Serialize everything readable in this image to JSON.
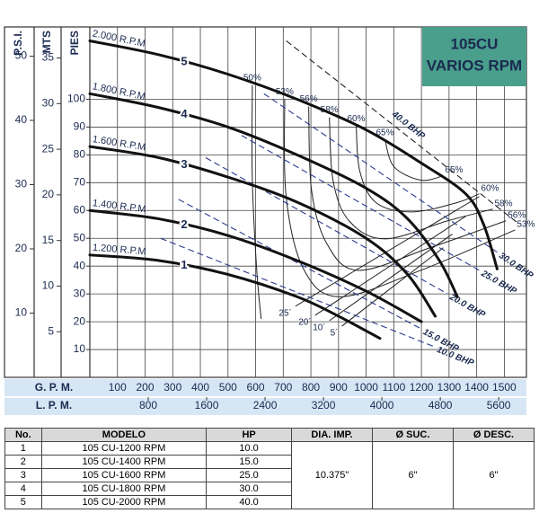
{
  "chart_data": {
    "type": "pump_curve",
    "title_lines": [
      "105CU",
      "VARIOS RPM"
    ],
    "title_color": "#4a9e8c",
    "x_label": "G. P. M.",
    "x2_label": "L. P. M.",
    "y_label": "PIES",
    "psi_label": "P.S.I.",
    "mts_label": "MTS",
    "xlim": [
      0,
      1580
    ],
    "xticks": [
      100,
      200,
      300,
      400,
      500,
      600,
      700,
      800,
      900,
      1000,
      1100,
      1200,
      1300,
      1400,
      1500
    ],
    "lpm_xlim": [
      0,
      5980
    ],
    "lpm_xticks": [
      800,
      1600,
      2400,
      3200,
      4000,
      4800,
      5600
    ],
    "ylim": [
      0,
      126
    ],
    "yticks": [
      10,
      20,
      30,
      40,
      50,
      60,
      70,
      80,
      90,
      100
    ],
    "psi_ylim": [
      0,
      54.55
    ],
    "psi_yticks": [
      10,
      20,
      30,
      40,
      50
    ],
    "mts_ylim": [
      0,
      38.4
    ],
    "mts_yticks": [
      5,
      10,
      15,
      20,
      25,
      30,
      35
    ],
    "grid": true,
    "series": [
      {
        "name": "2.000 R.P.M",
        "number": "5",
        "color": "#111111",
        "x": [
          0,
          250,
          500,
          750,
          1000,
          1200,
          1360,
          1425,
          1474
        ],
        "values": [
          121,
          116,
          109,
          100,
          89,
          77,
          66,
          55,
          39
        ]
      },
      {
        "name": "1.800 R.P.M",
        "number": "4",
        "color": "#111111",
        "x": [
          0,
          250,
          500,
          750,
          1000,
          1150,
          1265,
          1330
        ],
        "values": [
          102,
          97,
          90,
          80,
          68,
          57,
          42,
          29
        ]
      },
      {
        "name": "1.600 R.P.M",
        "number": "3",
        "color": "#111111",
        "x": [
          0,
          250,
          500,
          750,
          1000,
          1150,
          1250
        ],
        "values": [
          83,
          79,
          72,
          63,
          50,
          37,
          22
        ]
      },
      {
        "name": "1.400 R.P.M",
        "number": "2",
        "color": "#111111",
        "x": [
          0,
          250,
          500,
          750,
          1000,
          1200
        ],
        "values": [
          60,
          57,
          51,
          42,
          31,
          20
        ]
      },
      {
        "name": "1.200 R.P.M",
        "number": "1",
        "color": "#111111",
        "x": [
          0,
          250,
          500,
          750,
          900,
          1050
        ],
        "values": [
          44,
          42,
          37,
          29,
          22,
          14
        ]
      }
    ],
    "bhp_lines": [
      {
        "name": "10.0 BHP",
        "color": "#2b3a8f",
        "label_pos": "end",
        "x": [
          256,
          1247
        ],
        "values": [
          50,
          11
        ]
      },
      {
        "name": "15.0 BHP",
        "color": "#2b3a8f",
        "label_pos": "end",
        "x": [
          321,
          1198
        ],
        "values": [
          64,
          17.5
        ]
      },
      {
        "name": "20.0 BHP",
        "color": "#2b3a8f",
        "label_pos": "end",
        "x": [
          419,
          1295
        ],
        "values": [
          79,
          30
        ]
      },
      {
        "name": "25.0 BHP",
        "color": "#2b3a8f",
        "label_pos": "end",
        "x": [
          549,
          1409
        ],
        "values": [
          87,
          38.5
        ]
      },
      {
        "name": "30.0 BHP",
        "color": "#2b3a8f",
        "label_pos": "end",
        "x": [
          630,
          1474
        ],
        "values": [
          102,
          45
        ]
      },
      {
        "name": "40.0 BHP",
        "color": "#222222",
        "label_pos": "middle",
        "x": [
          711,
          1555
        ],
        "values": [
          121,
          55
        ]
      }
    ],
    "efficiency": [
      {
        "name": "50%",
        "both_ends": false,
        "x": [
          588,
          588,
          604,
          620
        ],
        "values": [
          105,
          71,
          38.5,
          21
        ]
      },
      {
        "name": "53%",
        "both_ends": true,
        "x": [
          705,
          711,
          776,
          906,
          1198,
          1539
        ],
        "values": [
          100,
          64.4,
          38.5,
          29,
          38.5,
          53
        ]
      },
      {
        "name": "56%",
        "both_ends": true,
        "x": [
          792,
          802,
          857,
          971,
          1231,
          1506
        ],
        "values": [
          97.4,
          67.6,
          48.2,
          38.5,
          46.6,
          56.3
        ]
      },
      {
        "name": "58%",
        "both_ends": true,
        "x": [
          867,
          880,
          938,
          1068,
          1295,
          1458
        ],
        "values": [
          93.5,
          70.9,
          56.3,
          49.8,
          56.3,
          60.5
        ]
      },
      {
        "name": "60%",
        "both_ends": true,
        "x": [
          964,
          977,
          1036,
          1166,
          1328,
          1409
        ],
        "values": [
          90.3,
          74.1,
          62.8,
          59.5,
          62.8,
          66
        ]
      },
      {
        "name": "65%",
        "both_ends": true,
        "x": [
          1068,
          1101,
          1198,
          1279
        ],
        "values": [
          85.4,
          75.7,
          70.9,
          72.5
        ]
      }
    ],
    "npsh": [
      {
        "name": "25´",
        "x": [
          744,
          1409
        ],
        "values": [
          25.6,
          65
        ]
      },
      {
        "name": "20´",
        "x": [
          815,
          1360
        ],
        "values": [
          22.3,
          57.9
        ]
      },
      {
        "name": "10´",
        "x": [
          867,
          1312
        ],
        "values": [
          20.4,
          51.5
        ]
      },
      {
        "name": "5´",
        "x": [
          912,
          1279
        ],
        "values": [
          18.4,
          46.6
        ]
      }
    ]
  },
  "table": {
    "headers": [
      "No.",
      "MODELO",
      "HP",
      "DIA. IMP.",
      "Ø SUC.",
      "Ø DESC."
    ],
    "rows": [
      [
        "1",
        "105 CU-1200 RPM",
        "10.0"
      ],
      [
        "2",
        "105 CU-1400 RPM",
        "15.0"
      ],
      [
        "3",
        "105 CU-1600 RPM",
        "25.0"
      ],
      [
        "4",
        "105 CU-1800 RPM",
        "30.0"
      ],
      [
        "5",
        "105 CU-2000 RPM",
        "40.0"
      ]
    ],
    "shared": [
      "10.375\"",
      "6\"",
      "6\""
    ]
  }
}
